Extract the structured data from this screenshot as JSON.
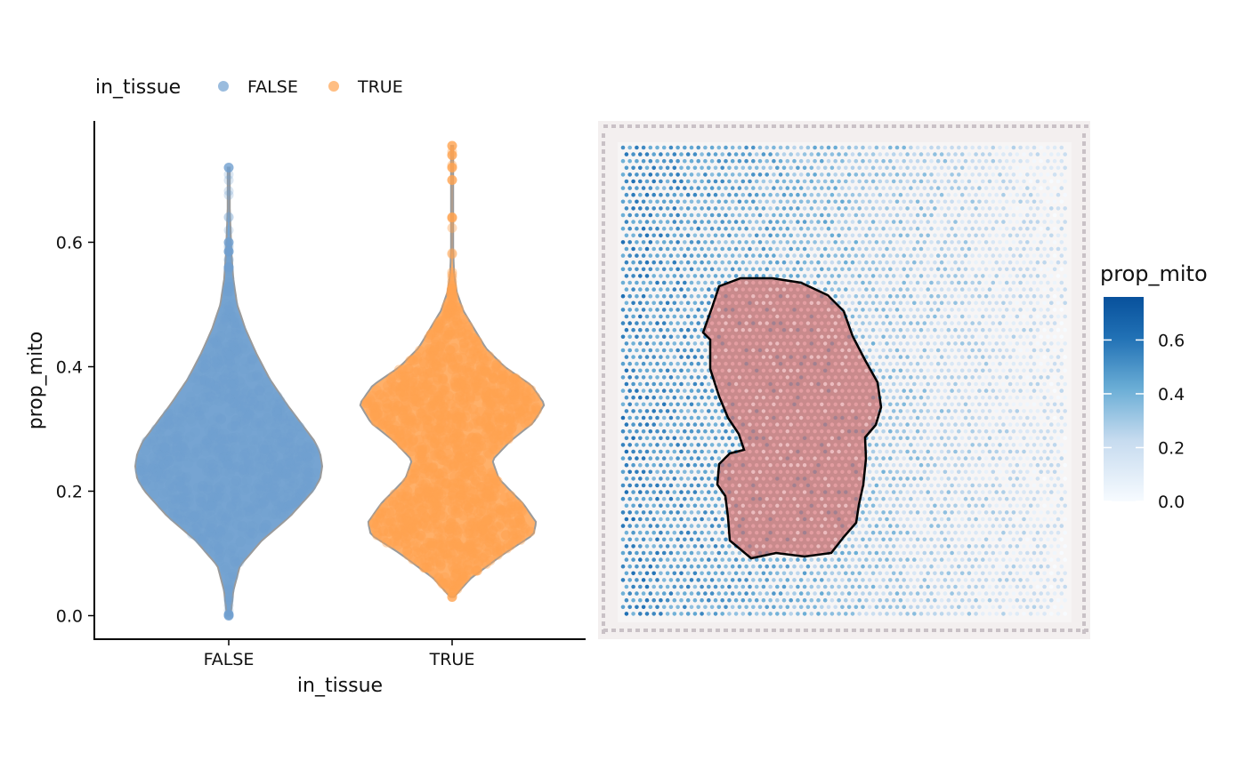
{
  "colors": {
    "false": "#6f9fd0",
    "true": "#ffa24f",
    "violin_outline": "#9a9a9a",
    "outline": "#000000",
    "tissue": "#c98a8c",
    "cb_low": "#f7fbff",
    "cb_mid": "#6baed6",
    "cb_high": "#08519c"
  },
  "chart_data": [
    {
      "type": "violin",
      "xlabel": "in_tissue",
      "ylabel": "prop_mito",
      "ylim": [
        -0.04,
        0.8
      ],
      "yticks": [
        "0.0",
        "0.2",
        "0.4",
        "0.6"
      ],
      "categories": [
        "FALSE",
        "TRUE"
      ],
      "legend": {
        "title": "in_tissue",
        "position": "top-left",
        "entries": [
          "FALSE",
          "TRUE"
        ]
      },
      "series": [
        {
          "name": "FALSE",
          "min": 0.0,
          "max": 0.72,
          "density": [
            [
              0.0,
              0.02
            ],
            [
              0.04,
              0.05
            ],
            [
              0.08,
              0.12
            ],
            [
              0.12,
              0.35
            ],
            [
              0.16,
              0.66
            ],
            [
              0.2,
              0.9
            ],
            [
              0.22,
              0.98
            ],
            [
              0.24,
              1.0
            ],
            [
              0.26,
              0.98
            ],
            [
              0.28,
              0.92
            ],
            [
              0.3,
              0.82
            ],
            [
              0.34,
              0.62
            ],
            [
              0.38,
              0.44
            ],
            [
              0.42,
              0.3
            ],
            [
              0.46,
              0.18
            ],
            [
              0.5,
              0.09
            ],
            [
              0.54,
              0.05
            ],
            [
              0.58,
              0.03
            ],
            [
              0.62,
              0.02
            ],
            [
              0.66,
              0.01
            ],
            [
              0.72,
              0.01
            ]
          ]
        },
        {
          "name": "TRUE",
          "min": 0.03,
          "max": 0.755,
          "density": [
            [
              0.03,
              0.02
            ],
            [
              0.06,
              0.2
            ],
            [
              0.1,
              0.56
            ],
            [
              0.13,
              0.87
            ],
            [
              0.15,
              0.9
            ],
            [
              0.18,
              0.76
            ],
            [
              0.22,
              0.5
            ],
            [
              0.25,
              0.43
            ],
            [
              0.28,
              0.62
            ],
            [
              0.31,
              0.87
            ],
            [
              0.34,
              0.99
            ],
            [
              0.37,
              0.85
            ],
            [
              0.4,
              0.56
            ],
            [
              0.43,
              0.36
            ],
            [
              0.46,
              0.24
            ],
            [
              0.49,
              0.12
            ],
            [
              0.52,
              0.05
            ],
            [
              0.55,
              0.02
            ],
            [
              0.6,
              0.01
            ],
            [
              0.7,
              0.01
            ],
            [
              0.755,
              0.01
            ]
          ]
        }
      ]
    },
    {
      "type": "spatial",
      "colorbar": {
        "title": "prop_mito",
        "range": [
          0.0,
          0.76
        ],
        "ticks": [
          "0.0",
          "0.2",
          "0.4",
          "0.6"
        ]
      }
    }
  ]
}
